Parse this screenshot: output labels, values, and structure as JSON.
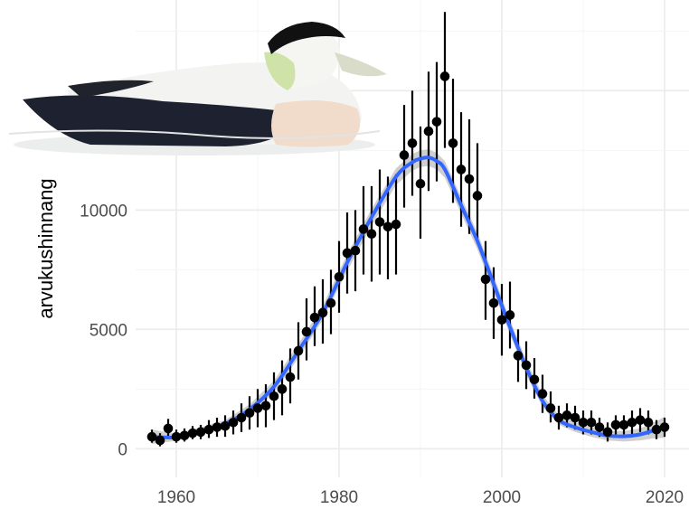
{
  "chart_data": {
    "type": "scatter",
    "title": "",
    "xlabel": "",
    "ylabel": "arvukushinnang",
    "xlim": [
      1955,
      2023
    ],
    "ylim": [
      -1200,
      18800
    ],
    "x_ticks": [
      1960,
      1980,
      2000,
      2020
    ],
    "x_tick_labels": [
      "1960",
      "1980",
      "2000",
      "2020"
    ],
    "y_ticks": [
      0,
      5000,
      10000
    ],
    "y_tick_labels": [
      "0",
      "5000",
      "10000"
    ],
    "grid": true,
    "legend": "none",
    "points": {
      "x": [
        1957,
        1958,
        1959,
        1960,
        1961,
        1962,
        1963,
        1964,
        1965,
        1966,
        1967,
        1968,
        1969,
        1970,
        1971,
        1972,
        1973,
        1974,
        1975,
        1976,
        1977,
        1978,
        1979,
        1980,
        1981,
        1982,
        1983,
        1984,
        1985,
        1986,
        1987,
        1988,
        1989,
        1990,
        1991,
        1992,
        1993,
        1994,
        1995,
        1996,
        1997,
        1998,
        1999,
        2000,
        2001,
        2002,
        2003,
        2004,
        2005,
        2006,
        2007,
        2008,
        2009,
        2010,
        2011,
        2012,
        2013,
        2014,
        2015,
        2016,
        2017,
        2018,
        2019,
        2020
      ],
      "y": [
        500,
        350,
        850,
        500,
        550,
        650,
        700,
        800,
        900,
        950,
        1100,
        1300,
        1500,
        1700,
        1800,
        2200,
        2500,
        3000,
        4100,
        4900,
        5500,
        5700,
        6100,
        7200,
        8200,
        8300,
        9200,
        9000,
        9500,
        9300,
        9400,
        12300,
        12800,
        11100,
        13300,
        13700,
        15600,
        12800,
        11700,
        11300,
        10600,
        7100,
        6100,
        5400,
        5600,
        3900,
        3500,
        2900,
        2300,
        1700,
        1300,
        1400,
        1300,
        1100,
        1100,
        900,
        700,
        1000,
        1000,
        1100,
        1200,
        1100,
        800,
        900
      ],
      "lower": [
        250,
        100,
        500,
        250,
        300,
        400,
        400,
        450,
        500,
        500,
        600,
        700,
        800,
        900,
        900,
        1200,
        1400,
        1900,
        2900,
        3700,
        4300,
        4400,
        4800,
        5700,
        6500,
        6600,
        7300,
        7000,
        7300,
        7100,
        7300,
        10100,
        10600,
        8800,
        10800,
        11200,
        12600,
        10300,
        9300,
        9000,
        8600,
        5400,
        4600,
        3900,
        4200,
        2800,
        2500,
        2100,
        1500,
        1100,
        800,
        900,
        800,
        600,
        600,
        500,
        300,
        600,
        600,
        600,
        700,
        600,
        400,
        500
      ],
      "upper": [
        800,
        650,
        1250,
        800,
        850,
        950,
        1000,
        1200,
        1300,
        1400,
        1600,
        1900,
        2200,
        2500,
        2700,
        3200,
        3700,
        4200,
        5300,
        6300,
        6800,
        7100,
        7500,
        8700,
        9900,
        10000,
        11000,
        11000,
        11700,
        11400,
        11500,
        14400,
        15000,
        13500,
        15800,
        16200,
        18300,
        15500,
        14100,
        13800,
        12800,
        8700,
        7600,
        6900,
        7000,
        5000,
        4500,
        3800,
        3100,
        2400,
        1800,
        1900,
        1800,
        1600,
        1600,
        1300,
        1100,
        1400,
        1400,
        1600,
        1700,
        1600,
        1200,
        1300
      ]
    },
    "smooth": {
      "name": "",
      "color": "#3366ff",
      "ribbon_color": "#c7c7c7",
      "x": [
        1957,
        1960,
        1963,
        1966,
        1969,
        1972,
        1975,
        1978,
        1981,
        1984,
        1987,
        1989,
        1990,
        1991,
        1992,
        1993,
        1995,
        1997,
        1999,
        2001,
        2003,
        2005,
        2007,
        2009,
        2011,
        2013,
        2015,
        2017,
        2019,
        2020
      ],
      "y": [
        500,
        480,
        750,
        1050,
        1650,
        2600,
        4100,
        5700,
        7800,
        9700,
        11400,
        12000,
        12150,
        12200,
        12050,
        11700,
        10200,
        8700,
        6900,
        5100,
        3400,
        2000,
        1200,
        900,
        700,
        550,
        520,
        600,
        800,
        900
      ],
      "lower": [
        200,
        330,
        600,
        900,
        1450,
        2350,
        3800,
        5400,
        7450,
        9350,
        11050,
        11650,
        11800,
        11850,
        11700,
        11350,
        9850,
        8350,
        6550,
        4800,
        3100,
        1750,
        1000,
        700,
        500,
        350,
        300,
        350,
        450,
        450
      ],
      "upper": [
        800,
        630,
        900,
        1200,
        1850,
        2850,
        4400,
        6000,
        8150,
        10050,
        11750,
        12350,
        12500,
        12550,
        12400,
        12050,
        10550,
        9050,
        7250,
        5400,
        3700,
        2250,
        1400,
        1100,
        900,
        750,
        740,
        850,
        1150,
        1350
      ]
    },
    "point_color": "#000000"
  },
  "illustration": {
    "name": "common-eider-drake",
    "colors": {
      "body": "#1e2230",
      "back": "#f3f3f1",
      "breast": "#f1dccb",
      "head_cap": "#111111",
      "nape": "#cfe3a9",
      "bill": "#d8dcc8"
    }
  }
}
